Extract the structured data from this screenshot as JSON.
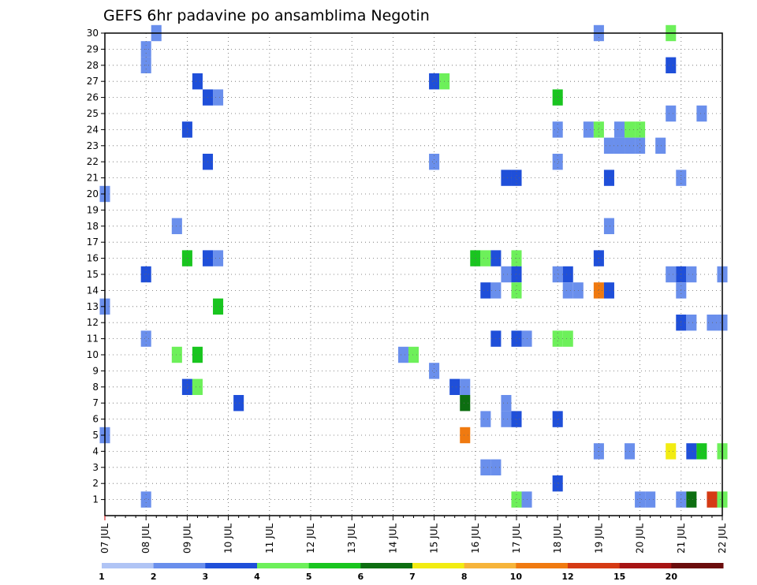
{
  "chart_data": {
    "type": "heatmap",
    "title": "GEFS 6hr padavine po ansamblima Negotin",
    "y_ticks": [
      1,
      2,
      3,
      4,
      5,
      6,
      7,
      8,
      9,
      10,
      11,
      12,
      13,
      14,
      15,
      16,
      17,
      18,
      19,
      20,
      21,
      22,
      23,
      24,
      25,
      26,
      27,
      28,
      29,
      30
    ],
    "x_ticks": [
      "07 JUL",
      "08 JUL",
      "09 JUL",
      "10 JUL",
      "11 JUL",
      "12 JUL",
      "13 JUL",
      "14 JUL",
      "15 JUL",
      "16 JUL",
      "17 JUL",
      "18 JUL",
      "19 JUL",
      "20 JUL",
      "21 JUL",
      "22 JUL"
    ],
    "grid": true,
    "colorbar": {
      "labels": [
        "1",
        "2",
        "3",
        "4",
        "5",
        "6",
        "7",
        "8",
        "10",
        "12",
        "15",
        "20"
      ],
      "colors": [
        "#b0c4f5",
        "#6a8fec",
        "#1f4fd9",
        "#6df05a",
        "#19c51f",
        "#0d6e11",
        "#f2ec12",
        "#f6b43a",
        "#f07a10",
        "#d53a14",
        "#a71414",
        "#6b0d0d"
      ]
    },
    "points": [
      [
        1.25,
        30,
        1
      ],
      [
        12.0,
        30,
        1
      ],
      [
        13.75,
        30,
        3
      ],
      [
        1.0,
        29,
        1
      ],
      [
        1.0,
        28,
        1
      ],
      [
        13.75,
        28,
        2
      ],
      [
        2.25,
        27,
        2
      ],
      [
        8.0,
        27,
        2
      ],
      [
        8.25,
        27,
        3
      ],
      [
        2.5,
        26,
        2
      ],
      [
        2.75,
        26,
        1
      ],
      [
        11.0,
        26,
        4
      ],
      [
        13.75,
        25,
        1
      ],
      [
        14.5,
        25,
        1
      ],
      [
        2.0,
        24,
        2
      ],
      [
        11.0,
        24,
        1
      ],
      [
        11.75,
        24,
        1
      ],
      [
        12.0,
        24,
        3
      ],
      [
        12.5,
        24,
        1
      ],
      [
        12.75,
        24,
        3
      ],
      [
        13.0,
        24,
        3
      ],
      [
        12.25,
        23,
        1
      ],
      [
        12.5,
        23,
        1
      ],
      [
        12.75,
        23,
        1
      ],
      [
        13.0,
        23,
        1
      ],
      [
        13.5,
        23,
        1
      ],
      [
        2.5,
        22,
        2
      ],
      [
        8.0,
        22,
        1
      ],
      [
        11.0,
        22,
        1
      ],
      [
        9.75,
        21,
        2
      ],
      [
        10.0,
        21,
        2
      ],
      [
        12.25,
        21,
        2
      ],
      [
        14.0,
        21,
        1
      ],
      [
        0.0,
        20,
        1
      ],
      [
        12.25,
        18,
        1
      ],
      [
        1.75,
        18,
        1
      ],
      [
        2.0,
        16,
        4
      ],
      [
        2.5,
        16,
        2
      ],
      [
        2.75,
        16,
        1
      ],
      [
        9.0,
        16,
        4
      ],
      [
        9.25,
        16,
        3
      ],
      [
        9.5,
        16,
        2
      ],
      [
        10.0,
        16,
        3
      ],
      [
        12.0,
        16,
        2
      ],
      [
        1.0,
        15,
        2
      ],
      [
        9.75,
        15,
        1
      ],
      [
        10.0,
        15,
        2
      ],
      [
        11.0,
        15,
        1
      ],
      [
        11.25,
        15,
        2
      ],
      [
        13.75,
        15,
        1
      ],
      [
        14.0,
        15,
        2
      ],
      [
        14.25,
        15,
        1
      ],
      [
        15.0,
        15,
        1
      ],
      [
        9.25,
        14,
        2
      ],
      [
        9.5,
        14,
        1
      ],
      [
        10.0,
        14,
        3
      ],
      [
        11.25,
        14,
        1
      ],
      [
        11.5,
        14,
        1
      ],
      [
        12.0,
        14,
        8
      ],
      [
        12.25,
        14,
        2
      ],
      [
        14.0,
        14,
        1
      ],
      [
        0.0,
        13,
        1
      ],
      [
        2.75,
        13,
        4
      ],
      [
        14.0,
        12,
        2
      ],
      [
        14.25,
        12,
        1
      ],
      [
        14.75,
        12,
        1
      ],
      [
        15.0,
        12,
        1
      ],
      [
        1.0,
        11,
        1
      ],
      [
        9.5,
        11,
        2
      ],
      [
        10.0,
        11,
        2
      ],
      [
        10.25,
        11,
        1
      ],
      [
        11.0,
        11,
        3
      ],
      [
        11.25,
        11,
        3
      ],
      [
        1.75,
        10,
        3
      ],
      [
        2.25,
        10,
        4
      ],
      [
        7.25,
        10,
        1
      ],
      [
        7.5,
        10,
        3
      ],
      [
        8.0,
        9,
        1
      ],
      [
        2.0,
        8,
        2
      ],
      [
        2.25,
        8,
        3
      ],
      [
        8.5,
        8,
        2
      ],
      [
        8.75,
        8,
        1
      ],
      [
        3.25,
        7,
        2
      ],
      [
        8.75,
        7,
        5
      ],
      [
        9.75,
        7,
        1
      ],
      [
        9.25,
        6,
        1
      ],
      [
        9.75,
        6,
        1
      ],
      [
        10.0,
        6,
        2
      ],
      [
        11.0,
        6,
        2
      ],
      [
        0.0,
        5,
        1
      ],
      [
        8.75,
        5,
        8
      ],
      [
        12.0,
        4,
        1
      ],
      [
        12.75,
        4,
        1
      ],
      [
        13.75,
        4,
        6
      ],
      [
        14.25,
        4,
        2
      ],
      [
        14.5,
        4,
        4
      ],
      [
        15.0,
        4,
        3
      ],
      [
        9.25,
        3,
        1
      ],
      [
        9.5,
        3,
        1
      ],
      [
        11.0,
        2,
        2
      ],
      [
        1.0,
        1,
        1
      ],
      [
        10.0,
        1,
        3
      ],
      [
        10.25,
        1,
        1
      ],
      [
        13.0,
        1,
        1
      ],
      [
        13.25,
        1,
        1
      ],
      [
        14.0,
        1,
        1
      ],
      [
        14.25,
        1,
        5
      ],
      [
        14.75,
        1,
        9
      ],
      [
        15.0,
        1,
        3
      ]
    ]
  }
}
